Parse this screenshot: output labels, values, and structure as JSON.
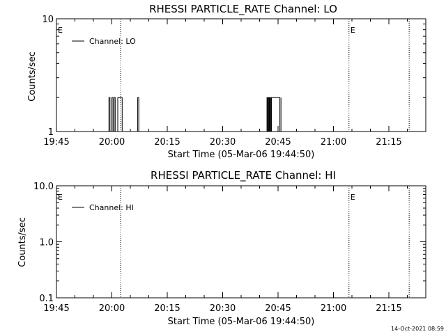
{
  "chart_data": [
    {
      "type": "line",
      "title": "RHESSI PARTICLE_RATE Channel: LO",
      "xlabel": "Start Time (05-Mar-06 19:44:50)",
      "ylabel": "Counts/sec",
      "yscale": "log",
      "ylim": [
        1,
        10
      ],
      "y_ticks": [
        "1",
        "10"
      ],
      "x_ticks": [
        "19:45",
        "20:00",
        "20:15",
        "20:30",
        "20:45",
        "21:00",
        "21:15"
      ],
      "x_tick_minutes": [
        0,
        15,
        30,
        45,
        60,
        75,
        90
      ],
      "xlim_minutes": [
        0,
        100
      ],
      "legend": "top-left",
      "series": [
        {
          "name": "Channel: LO",
          "x_minutes": [
            14.2,
            14.2,
            14.5,
            14.5,
            15.0,
            15.0,
            15.3,
            15.3,
            15.6,
            15.6,
            15.9,
            15.9,
            16.6,
            16.6,
            17.8,
            17.8,
            18.1,
            18.1,
            22.0,
            22.0,
            22.3,
            22.3,
            57.0,
            57.0,
            57.2,
            57.2,
            57.4,
            57.4,
            57.6,
            57.6,
            57.8,
            57.8,
            58.0,
            58.0,
            58.2,
            58.2,
            60.5,
            60.5,
            60.8,
            60.8
          ],
          "values": [
            1,
            2,
            2,
            1,
            1,
            2,
            2,
            1,
            1,
            2,
            2,
            1,
            1,
            2,
            2,
            1,
            1,
            1,
            1,
            2,
            2,
            1,
            1,
            2,
            2,
            1,
            1,
            2,
            2,
            1,
            1,
            2,
            2,
            1,
            1,
            2,
            2,
            1,
            1,
            2
          ]
        }
      ],
      "markers": [
        {
          "x_minutes": 0,
          "label": "E"
        },
        {
          "x_minutes": 17.4,
          "label": ""
        },
        {
          "x_minutes": 79.2,
          "label": "E"
        },
        {
          "x_minutes": 95.5,
          "label": ""
        }
      ]
    },
    {
      "type": "line",
      "title": "RHESSI PARTICLE_RATE Channel: HI",
      "xlabel": "Start Time (05-Mar-06 19:44:50)",
      "ylabel": "Counts/sec",
      "yscale": "log",
      "ylim": [
        0.1,
        10
      ],
      "y_ticks": [
        "0.1",
        "1.0",
        "10.0"
      ],
      "x_ticks": [
        "19:45",
        "20:00",
        "20:15",
        "20:30",
        "20:45",
        "21:00",
        "21:15"
      ],
      "x_tick_minutes": [
        0,
        15,
        30,
        45,
        60,
        75,
        90
      ],
      "xlim_minutes": [
        0,
        100
      ],
      "legend": "top-left",
      "series": [
        {
          "name": "Channel: HI",
          "x_minutes": [],
          "values": []
        }
      ],
      "markers": [
        {
          "x_minutes": 0,
          "label": "E"
        },
        {
          "x_minutes": 17.4,
          "label": ""
        },
        {
          "x_minutes": 79.2,
          "label": "E"
        },
        {
          "x_minutes": 95.5,
          "label": ""
        }
      ]
    }
  ],
  "timestamp": "14-Oct-2021 08:59"
}
